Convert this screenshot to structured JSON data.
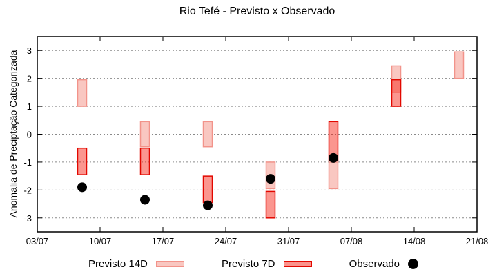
{
  "title": "Rio Tefé - Previsto x Observado",
  "ylabel": "Anomalia de Preciptação Categorizada",
  "legend": {
    "items": [
      {
        "label": "Previsto 14D",
        "swatch": "box-14d"
      },
      {
        "label": "Previsto 7D",
        "swatch": "box-7d"
      },
      {
        "label": "Observado",
        "swatch": "dot"
      }
    ]
  },
  "colors": {
    "previsto_14d_fill": "#f9c7c1",
    "previsto_14d_stroke": "#f2938a",
    "previsto_7d_fill_rgba": "rgba(246,22,6,0.45)",
    "previsto_7d_legend_fill": "#fb938c",
    "previsto_7d_stroke": "#e20800",
    "observado_fill": "#000000",
    "grid": "#8a8a8a",
    "axis": "#000000",
    "background": "#ffffff"
  },
  "chart_data": {
    "type": "bar",
    "subtype": "range-boxes-with-observed-dots",
    "title": "Rio Tefé - Previsto x Observado",
    "xlabel": "",
    "ylabel": "Anomalia de Preciptação Categorizada",
    "ylim": [
      -3.5,
      3.5
    ],
    "y_ticks": [
      3,
      2,
      1,
      0,
      -1,
      -2,
      -3
    ],
    "grid": "dashed horizontal at every y tick",
    "legend_position": "bottom outside",
    "x_range_days": [
      0,
      49
    ],
    "x_ticks": [
      {
        "label": "03/07",
        "day": 0
      },
      {
        "label": "10/07",
        "day": 7
      },
      {
        "label": "17/07",
        "day": 14
      },
      {
        "label": "24/07",
        "day": 21
      },
      {
        "label": "31/07",
        "day": 28
      },
      {
        "label": "07/08",
        "day": 35
      },
      {
        "label": "14/08",
        "day": 42
      },
      {
        "label": "21/08",
        "day": 49
      }
    ],
    "series": [
      {
        "name": "Previsto 14D",
        "style": "light-pink range box"
      },
      {
        "name": "Previsto 7D",
        "style": "red range box, semi-transparent, drawn over 14D"
      },
      {
        "name": "Observado",
        "style": "black filled circle"
      }
    ],
    "groups": [
      {
        "date": "08/07",
        "day": 5,
        "previsto_14d": [
          1.0,
          1.95
        ],
        "previsto_7d": [
          -1.45,
          -0.5
        ],
        "observado": -1.9
      },
      {
        "date": "15/07",
        "day": 12,
        "previsto_14d": [
          -0.45,
          0.45
        ],
        "previsto_7d": [
          -1.45,
          -0.5
        ],
        "observado": -2.35
      },
      {
        "date": "22/07",
        "day": 19,
        "previsto_14d": [
          -0.45,
          0.45
        ],
        "previsto_7d": [
          -2.45,
          -1.5
        ],
        "observado": -2.55
      },
      {
        "date": "29/07",
        "day": 26,
        "previsto_14d": [
          -1.95,
          -1.0
        ],
        "previsto_7d": [
          -3.0,
          -2.05
        ],
        "observado": -1.6
      },
      {
        "date": "05/08",
        "day": 33,
        "previsto_14d": [
          -1.95,
          -1.0
        ],
        "previsto_7d": [
          -0.95,
          0.45
        ],
        "observado": -0.85
      },
      {
        "date": "12/08",
        "day": 40,
        "previsto_14d": [
          1.5,
          2.45
        ],
        "previsto_7d": [
          1.0,
          1.95
        ],
        "observado": null
      },
      {
        "date": "19/08",
        "day": 47,
        "previsto_14d": [
          2.0,
          2.95
        ],
        "previsto_7d": null,
        "observado": null
      }
    ]
  }
}
